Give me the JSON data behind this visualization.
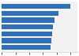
{
  "values": [
    100,
    82,
    77,
    75,
    73,
    72,
    71
  ],
  "bar_color": "#2f70b8",
  "background_color": "#ffffff",
  "plot_background": "#f2f2f2",
  "xlim": [
    0,
    110
  ],
  "bar_height": 0.75,
  "figsize": [
    1.0,
    0.71
  ],
  "dpi": 100
}
